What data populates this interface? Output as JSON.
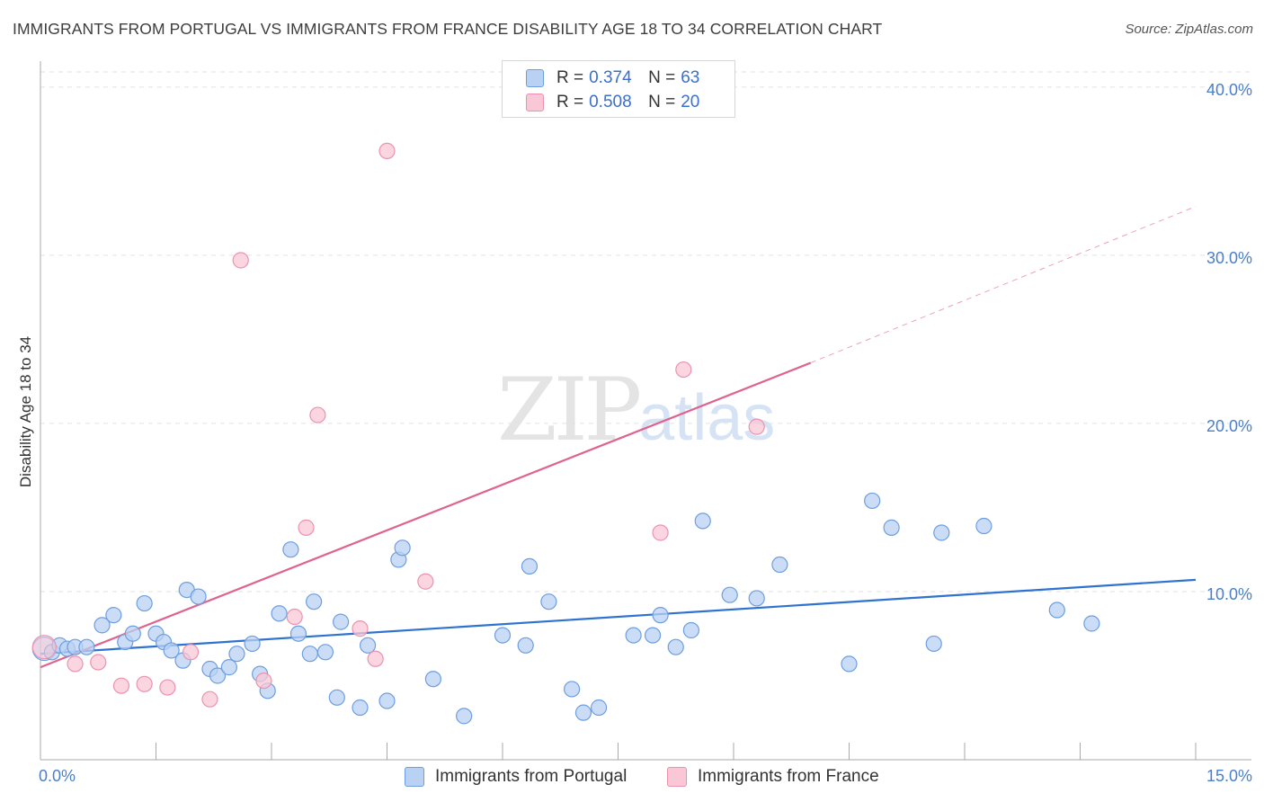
{
  "title": "IMMIGRANTS FROM PORTUGAL VS IMMIGRANTS FROM FRANCE DISABILITY AGE 18 TO 34 CORRELATION CHART",
  "source": "Source: ZipAtlas.com",
  "watermark": {
    "zip": "ZIP",
    "atlas": "atlas"
  },
  "legend": {
    "rows": [
      {
        "r_label": "R =",
        "r_value": "0.374",
        "n_label": "N =",
        "n_value": "63",
        "color": "#a9c6f0"
      },
      {
        "r_label": "R =",
        "r_value": "0.508",
        "n_label": "N =",
        "n_value": "20",
        "color": "#f7b8cc"
      }
    ]
  },
  "bottom_legend": {
    "portugal": "Immigrants from Portugal",
    "france": "Immigrants from France"
  },
  "colors": {
    "portugal_fill": "#b9d1f3",
    "portugal_stroke": "#6d9ee0",
    "portugal_line": "#2f72d0",
    "france_fill": "#f9c7d6",
    "france_stroke": "#ea93b0",
    "france_line": "#e0638f",
    "grid": "#e2e2e2",
    "axis": "#aaaaaa"
  },
  "chart_data": {
    "type": "scatter",
    "title": "IMMIGRANTS FROM PORTUGAL VS IMMIGRANTS FROM FRANCE DISABILITY AGE 18 TO 34 CORRELATION CHART",
    "xlabel": "",
    "ylabel": "Disability Age 18 to 34",
    "xlim": [
      0,
      15
    ],
    "ylim": [
      0,
      40.9
    ],
    "x_tick_labels": [
      "0.0%",
      "15.0%"
    ],
    "y_ticks": [
      10,
      20,
      30,
      40
    ],
    "y_tick_labels": [
      "10.0%",
      "20.0%",
      "30.0%",
      "40.0%"
    ],
    "series": [
      {
        "name": "Immigrants from Portugal",
        "R": 0.374,
        "N": 63,
        "trend": {
          "x": [
            0.0,
            15.0
          ],
          "y": [
            6.3,
            10.7
          ],
          "dashed_to": null
        },
        "points": [
          [
            0.05,
            6.6
          ],
          [
            0.15,
            6.4
          ],
          [
            0.25,
            6.8
          ],
          [
            0.35,
            6.6
          ],
          [
            0.45,
            6.7
          ],
          [
            0.6,
            6.7
          ],
          [
            0.8,
            8.0
          ],
          [
            0.95,
            8.6
          ],
          [
            1.1,
            7.0
          ],
          [
            1.2,
            7.5
          ],
          [
            1.35,
            9.3
          ],
          [
            1.5,
            7.5
          ],
          [
            1.6,
            7.0
          ],
          [
            1.7,
            6.5
          ],
          [
            1.85,
            5.9
          ],
          [
            1.9,
            10.1
          ],
          [
            2.05,
            9.7
          ],
          [
            2.2,
            5.4
          ],
          [
            2.3,
            5.0
          ],
          [
            2.45,
            5.5
          ],
          [
            2.55,
            6.3
          ],
          [
            2.75,
            6.9
          ],
          [
            2.85,
            5.1
          ],
          [
            2.95,
            4.1
          ],
          [
            3.1,
            8.7
          ],
          [
            3.25,
            12.5
          ],
          [
            3.35,
            7.5
          ],
          [
            3.5,
            6.3
          ],
          [
            3.55,
            9.4
          ],
          [
            3.7,
            6.4
          ],
          [
            3.85,
            3.7
          ],
          [
            3.9,
            8.2
          ],
          [
            4.15,
            3.1
          ],
          [
            4.25,
            6.8
          ],
          [
            4.5,
            3.5
          ],
          [
            4.65,
            11.9
          ],
          [
            4.7,
            12.6
          ],
          [
            5.1,
            4.8
          ],
          [
            5.5,
            2.6
          ],
          [
            6.0,
            7.4
          ],
          [
            6.3,
            6.8
          ],
          [
            6.35,
            11.5
          ],
          [
            6.6,
            9.4
          ],
          [
            6.9,
            4.2
          ],
          [
            7.05,
            2.8
          ],
          [
            7.25,
            3.1
          ],
          [
            7.7,
            7.4
          ],
          [
            7.95,
            7.4
          ],
          [
            8.05,
            8.6
          ],
          [
            8.25,
            6.7
          ],
          [
            8.45,
            7.7
          ],
          [
            8.6,
            14.2
          ],
          [
            8.95,
            9.8
          ],
          [
            9.3,
            9.6
          ],
          [
            9.6,
            11.6
          ],
          [
            10.5,
            5.7
          ],
          [
            10.8,
            15.4
          ],
          [
            11.05,
            13.8
          ],
          [
            11.6,
            6.9
          ],
          [
            11.7,
            13.5
          ],
          [
            12.25,
            13.9
          ],
          [
            13.2,
            8.9
          ],
          [
            13.65,
            8.1
          ]
        ]
      },
      {
        "name": "Immigrants from France",
        "R": 0.508,
        "N": 20,
        "trend": {
          "x": [
            0.0,
            10.0
          ],
          "y": [
            5.5,
            23.6
          ],
          "dashed_to": [
            15.0,
            32.9
          ]
        },
        "points": [
          [
            0.05,
            6.7
          ],
          [
            0.45,
            5.7
          ],
          [
            0.75,
            5.8
          ],
          [
            1.05,
            4.4
          ],
          [
            1.35,
            4.5
          ],
          [
            1.65,
            4.3
          ],
          [
            1.95,
            6.4
          ],
          [
            2.2,
            3.6
          ],
          [
            2.6,
            29.7
          ],
          [
            2.9,
            4.7
          ],
          [
            3.3,
            8.5
          ],
          [
            3.45,
            13.8
          ],
          [
            3.6,
            20.5
          ],
          [
            4.15,
            7.8
          ],
          [
            4.35,
            6.0
          ],
          [
            4.5,
            36.2
          ],
          [
            5.0,
            10.6
          ],
          [
            8.05,
            13.5
          ],
          [
            8.35,
            23.2
          ],
          [
            9.3,
            19.8
          ]
        ]
      }
    ]
  }
}
